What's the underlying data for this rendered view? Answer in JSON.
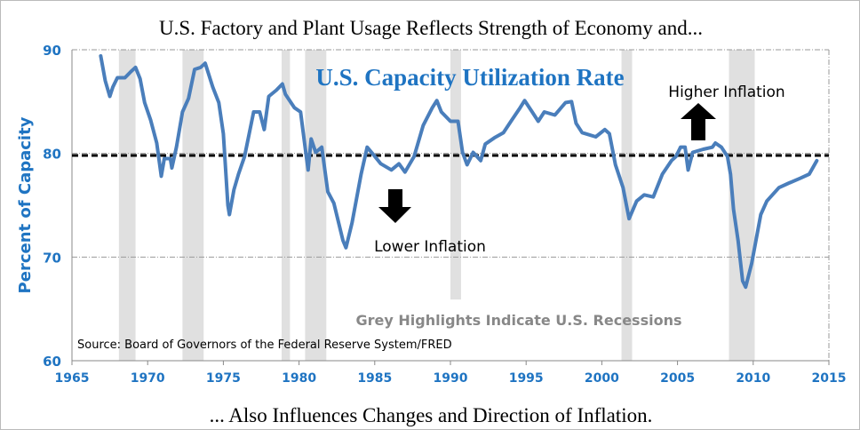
{
  "chart_data": {
    "type": "line",
    "title": "U.S. Factory and Plant Usage Reflects Strength of Economy and...",
    "caption": "... Also Influences Changes and Direction of Inflation.",
    "inner_title": "U.S. Capacity Utilization Rate",
    "xlabel": "",
    "ylabel": "Percent of Capacity",
    "xlim": [
      1965,
      2015
    ],
    "ylim": [
      60,
      90
    ],
    "xticks": [
      "1965",
      "1970",
      "1975",
      "1980",
      "1985",
      "1990",
      "1995",
      "2000",
      "2005",
      "2010",
      "2015"
    ],
    "yticks": [
      "60",
      "70",
      "80",
      "90"
    ],
    "grid": true,
    "threshold": 79.8,
    "annotations": {
      "higher": "Higher Inflation",
      "lower": "Lower Inflation",
      "recessions_note": "Grey Highlights Indicate U.S. Recessions",
      "source": "Source: Board of Governors of the Federal Reserve System/FRED"
    },
    "recessions": [
      [
        1968.1,
        1969.2
      ],
      [
        1972.3,
        1973.7
      ],
      [
        1978.85,
        1979.4
      ],
      [
        1980.4,
        1981.8
      ],
      [
        1990.0,
        1990.7
      ],
      [
        2001.3,
        2002.0
      ],
      [
        2008.4,
        2010.1
      ]
    ],
    "series": [
      {
        "name": "U.S. Capacity Utilization Rate",
        "color": "#4a7ebb",
        "points": [
          [
            1966.9,
            89.4
          ],
          [
            1967.2,
            87.0
          ],
          [
            1967.5,
            85.5
          ],
          [
            1967.7,
            86.4
          ],
          [
            1968.0,
            87.3
          ],
          [
            1968.5,
            87.3
          ],
          [
            1968.9,
            87.9
          ],
          [
            1969.2,
            88.3
          ],
          [
            1969.5,
            87.2
          ],
          [
            1969.8,
            84.9
          ],
          [
            1970.2,
            83.2
          ],
          [
            1970.6,
            81.0
          ],
          [
            1970.9,
            77.8
          ],
          [
            1971.1,
            79.5
          ],
          [
            1971.5,
            79.5
          ],
          [
            1971.6,
            78.6
          ],
          [
            1971.9,
            80.6
          ],
          [
            1972.3,
            84.0
          ],
          [
            1972.7,
            85.3
          ],
          [
            1973.1,
            88.1
          ],
          [
            1973.5,
            88.3
          ],
          [
            1973.8,
            88.7
          ],
          [
            1974.3,
            86.4
          ],
          [
            1974.7,
            84.9
          ],
          [
            1975.0,
            81.9
          ],
          [
            1975.3,
            75.0
          ],
          [
            1975.4,
            74.1
          ],
          [
            1975.7,
            76.5
          ],
          [
            1976.0,
            78.0
          ],
          [
            1976.4,
            79.7
          ],
          [
            1977.0,
            84.0
          ],
          [
            1977.4,
            84.0
          ],
          [
            1977.7,
            82.3
          ],
          [
            1978.0,
            85.5
          ],
          [
            1978.5,
            86.1
          ],
          [
            1978.9,
            86.7
          ],
          [
            1979.1,
            85.7
          ],
          [
            1979.7,
            84.4
          ],
          [
            1980.1,
            84.0
          ],
          [
            1980.4,
            80.6
          ],
          [
            1980.6,
            78.4
          ],
          [
            1980.8,
            81.4
          ],
          [
            1981.1,
            80.1
          ],
          [
            1981.5,
            80.6
          ],
          [
            1981.9,
            76.3
          ],
          [
            1982.3,
            75.2
          ],
          [
            1982.9,
            71.6
          ],
          [
            1983.1,
            70.9
          ],
          [
            1983.5,
            73.3
          ],
          [
            1984.1,
            78.0
          ],
          [
            1984.5,
            80.6
          ],
          [
            1984.9,
            79.9
          ],
          [
            1985.4,
            79.0
          ],
          [
            1986.1,
            78.4
          ],
          [
            1986.6,
            79.0
          ],
          [
            1987.0,
            78.2
          ],
          [
            1987.6,
            79.7
          ],
          [
            1988.2,
            82.7
          ],
          [
            1988.8,
            84.4
          ],
          [
            1989.1,
            85.1
          ],
          [
            1989.4,
            84.0
          ],
          [
            1990.0,
            83.1
          ],
          [
            1990.5,
            83.1
          ],
          [
            1990.8,
            80.1
          ],
          [
            1991.1,
            78.9
          ],
          [
            1991.5,
            80.1
          ],
          [
            1992.0,
            79.3
          ],
          [
            1992.3,
            80.9
          ],
          [
            1992.9,
            81.5
          ],
          [
            1993.5,
            82.0
          ],
          [
            1994.0,
            83.1
          ],
          [
            1994.6,
            84.4
          ],
          [
            1994.9,
            85.1
          ],
          [
            1995.4,
            84.0
          ],
          [
            1995.8,
            83.1
          ],
          [
            1996.2,
            84.0
          ],
          [
            1996.9,
            83.7
          ],
          [
            1997.6,
            84.9
          ],
          [
            1998.0,
            85.0
          ],
          [
            1998.3,
            82.9
          ],
          [
            1998.7,
            82.0
          ],
          [
            1999.6,
            81.6
          ],
          [
            2000.2,
            82.3
          ],
          [
            2000.5,
            81.9
          ],
          [
            2000.9,
            78.9
          ],
          [
            2001.4,
            76.7
          ],
          [
            2001.8,
            73.7
          ],
          [
            2002.3,
            75.4
          ],
          [
            2002.8,
            76.0
          ],
          [
            2003.4,
            75.8
          ],
          [
            2004.0,
            78.0
          ],
          [
            2004.6,
            79.3
          ],
          [
            2004.9,
            79.7
          ],
          [
            2005.2,
            80.6
          ],
          [
            2005.5,
            80.6
          ],
          [
            2005.7,
            78.4
          ],
          [
            2006.0,
            80.1
          ],
          [
            2006.7,
            80.4
          ],
          [
            2007.3,
            80.6
          ],
          [
            2007.5,
            81.0
          ],
          [
            2007.9,
            80.6
          ],
          [
            2008.3,
            79.7
          ],
          [
            2008.5,
            78.0
          ],
          [
            2008.7,
            74.6
          ],
          [
            2009.0,
            71.6
          ],
          [
            2009.3,
            67.7
          ],
          [
            2009.5,
            67.1
          ],
          [
            2009.9,
            69.4
          ],
          [
            2010.5,
            74.1
          ],
          [
            2010.9,
            75.4
          ],
          [
            2011.7,
            76.7
          ],
          [
            2012.3,
            77.1
          ],
          [
            2013.1,
            77.6
          ],
          [
            2013.7,
            78.0
          ],
          [
            2014.2,
            79.3
          ]
        ]
      }
    ],
    "threshold_color": "#000000",
    "recession_color": "#e0e0e0",
    "accent_color": "#1f74c2"
  }
}
